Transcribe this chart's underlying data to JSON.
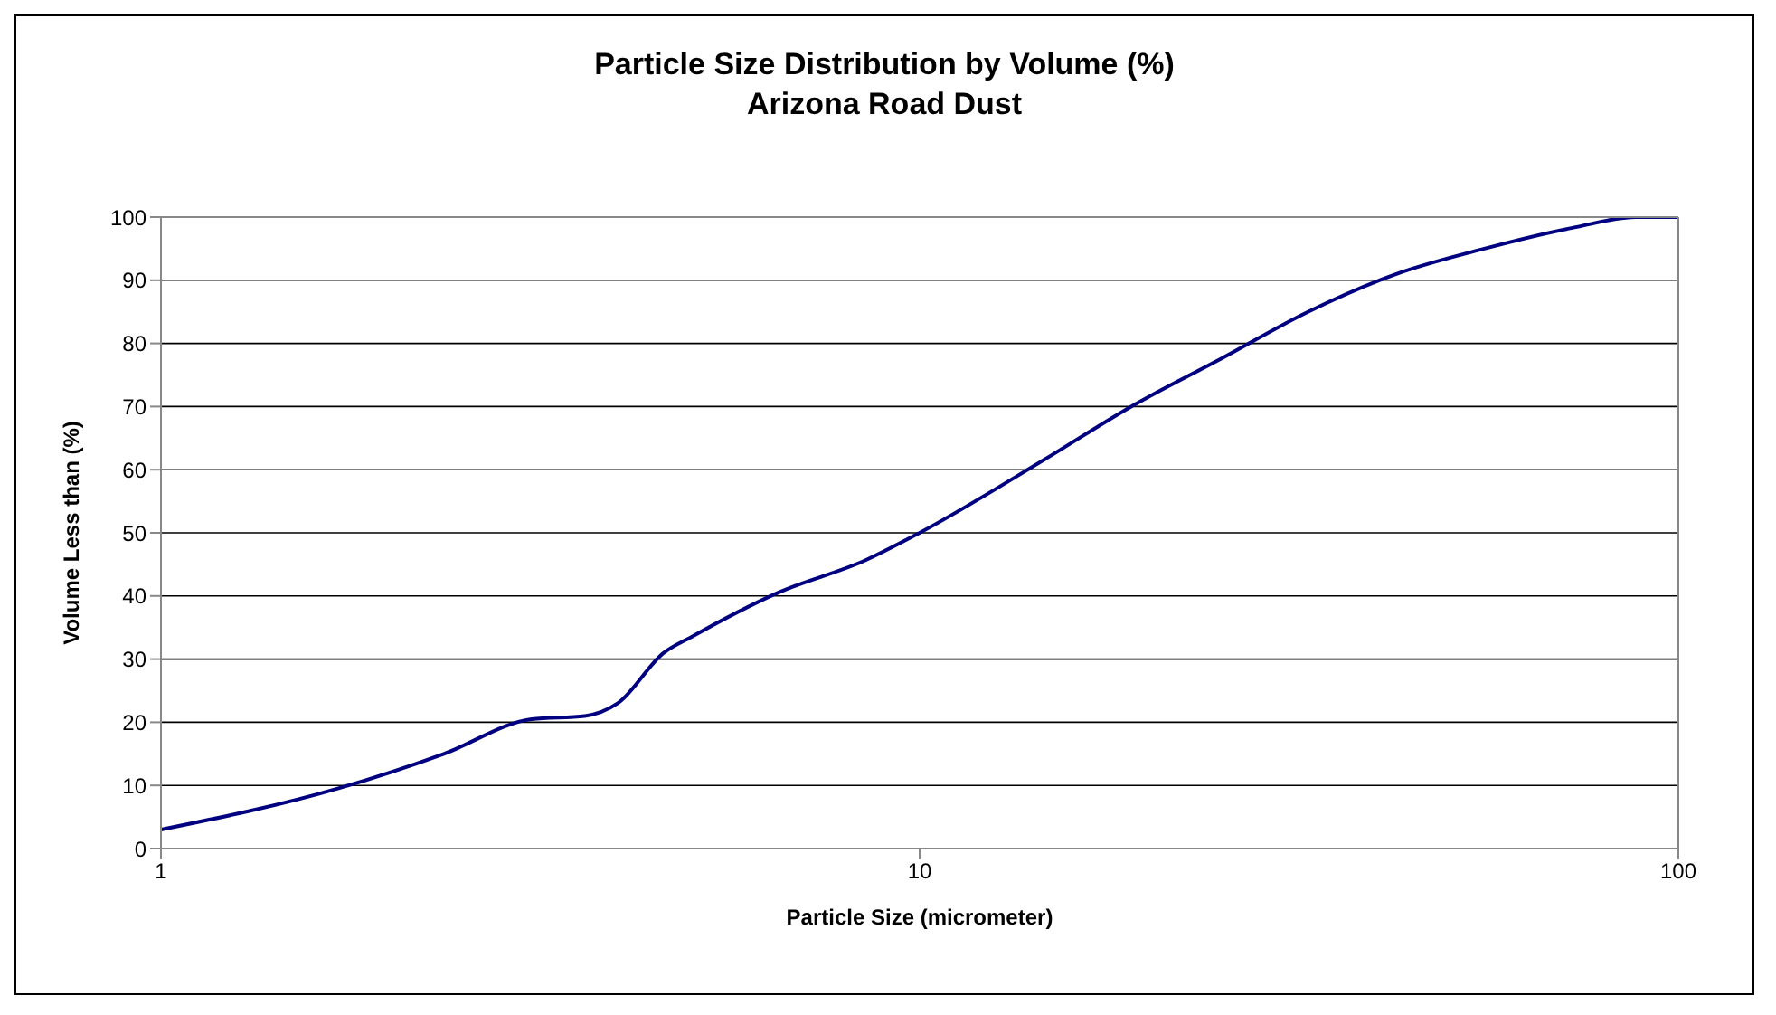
{
  "chart_data": {
    "type": "line",
    "title": "Particle Size Distribution by Volume (%)",
    "subtitle": "Arizona Road Dust",
    "xlabel": "Particle Size (micrometer)",
    "ylabel": "Volume Less than (%)",
    "log": "x",
    "xlim": [
      1,
      100
    ],
    "xticks": [
      1,
      10,
      100
    ],
    "ylim": [
      0,
      100
    ],
    "yticks": [
      0,
      10,
      20,
      30,
      40,
      50,
      60,
      70,
      80,
      90,
      100
    ],
    "grid": "y",
    "legend": false,
    "marker": "none",
    "line_style": "solid",
    "series": [
      {
        "color": "#000080",
        "x": [
          1,
          1.71,
          2.36,
          3.08,
          3.62,
          4.0,
          4.6,
          5.0,
          6.5,
          8.5,
          10,
          14.6,
          19,
          24.9,
          32.5,
          42.5,
          55.5,
          72.5,
          88,
          100
        ],
        "values": [
          3,
          9.5,
          15,
          20.5,
          21,
          23,
          31,
          33.5,
          40.5,
          45.7,
          50,
          61.6,
          70,
          77.5,
          85,
          91,
          95,
          98.3,
          100,
          100
        ]
      }
    ]
  }
}
